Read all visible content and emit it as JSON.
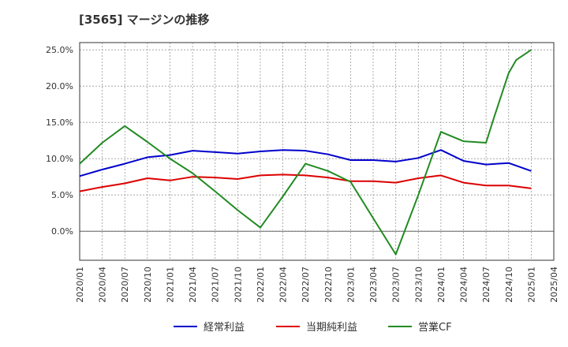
{
  "chart_data": {
    "type": "line",
    "title": "[3565]  マージンの推移",
    "xlabel": "",
    "ylabel": "",
    "x": [
      "2020/01",
      "2020/04",
      "2020/07",
      "2020/10",
      "2021/01",
      "2021/04",
      "2021/07",
      "2021/10",
      "2022/01",
      "2022/04",
      "2022/07",
      "2022/10",
      "2023/01",
      "2023/04",
      "2023/07",
      "2023/10",
      "2024/01",
      "2024/04",
      "2024/07",
      "2024/10",
      "2025/01"
    ],
    "x_ticks": [
      "2020/01",
      "2020/04",
      "2020/07",
      "2020/10",
      "2021/01",
      "2021/04",
      "2021/07",
      "2021/10",
      "2022/01",
      "2022/04",
      "2022/07",
      "2022/10",
      "2023/01",
      "2023/04",
      "2023/07",
      "2023/10",
      "2024/01",
      "2024/04",
      "2024/07",
      "2024/10",
      "2025/01",
      "2025/04"
    ],
    "y_ticks": [
      0,
      5,
      10,
      15,
      20,
      25
    ],
    "y_tick_labels": [
      "0.0%",
      "5.0%",
      "10.0%",
      "15.0%",
      "20.0%",
      "25.0%"
    ],
    "ylim": [
      -4,
      26
    ],
    "grid": true,
    "legend_position": "bottom",
    "series": [
      {
        "name": "経常利益",
        "color": "#0000cc",
        "values": [
          7.6,
          8.5,
          9.3,
          10.2,
          10.5,
          11.1,
          10.9,
          10.7,
          11.0,
          11.2,
          11.1,
          10.6,
          9.8,
          9.8,
          9.6,
          10.1,
          11.2,
          9.7,
          9.2,
          9.4,
          8.3
        ]
      },
      {
        "name": "当期純利益",
        "color": "#dd0000",
        "values": [
          5.5,
          6.1,
          6.6,
          7.3,
          7.0,
          7.5,
          7.4,
          7.2,
          7.7,
          7.8,
          7.7,
          7.4,
          6.9,
          6.9,
          6.7,
          7.3,
          7.7,
          6.7,
          6.3,
          6.3,
          5.9
        ]
      },
      {
        "name": "営業CF",
        "color": "#228b22",
        "values": [
          9.3,
          12.2,
          14.5,
          12.3,
          10.0,
          8.0,
          5.5,
          2.9,
          0.5,
          4.8,
          9.3,
          8.3,
          6.8,
          1.8,
          -3.2,
          5.0,
          13.7,
          12.4,
          12.2,
          15.5,
          21.8,
          23.6,
          25.0
        ],
        "x": [
          "2020/01",
          "2020/04",
          "2020/07",
          "2020/10",
          "2021/01",
          "2021/04",
          "2021/07",
          "2021/10",
          "2022/01",
          "2022/04",
          "2022/07",
          "2022/10",
          "2023/01",
          "2023/04",
          "2023/07",
          "2023/10",
          "2024/01",
          "2024/04",
          "2024/07",
          "2024/08",
          "2024/10",
          "2024/11",
          "2025/01"
        ]
      }
    ]
  }
}
